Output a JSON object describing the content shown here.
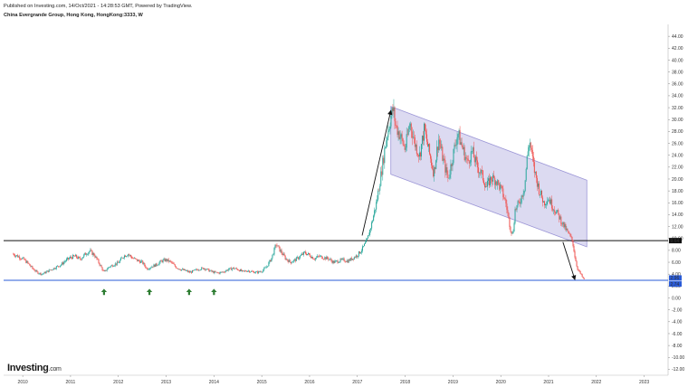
{
  "header": {
    "published": "Published on Investing.com, 14/Oct/2021 - 14:28:53 GMT, Powered by TradingView.",
    "title": "China Evergrande Group, Hong Kong, HongKong:3333, W"
  },
  "logo": {
    "main": "Investing",
    "suffix": ".com"
  },
  "colors": {
    "up": "#26a69a",
    "down": "#ef5350",
    "channel": "#9b95d6",
    "line": "#111111",
    "support": "#2a5bd7",
    "arrow_up": "#2e7d32"
  },
  "chart_data": {
    "type": "candlestick",
    "y_ticks": [
      "44.00",
      "42.00",
      "40.00",
      "38.00",
      "36.00",
      "34.00",
      "32.00",
      "30.00",
      "28.00",
      "26.00",
      "24.00",
      "22.00",
      "20.00",
      "18.00",
      "16.00",
      "14.00",
      "12.00",
      "10.00",
      "8.00",
      "6.00",
      "4.00",
      "2.00",
      "0.00",
      "-2.00",
      "-4.00",
      "-6.00",
      "-8.00",
      "-10.00",
      "-12.00"
    ],
    "x_ticks": [
      "2010",
      "2011",
      "2012",
      "2013",
      "2014",
      "2015",
      "2016",
      "2017",
      "2018",
      "2019",
      "2020",
      "2021",
      "2022",
      "2023"
    ],
    "ylim": [
      -13,
      46
    ],
    "xlim": [
      2009.6,
      2023.5
    ],
    "price_badges": [
      {
        "label": "9.64",
        "value": 9.64,
        "color": "#111111"
      },
      {
        "label": "2.96",
        "value": 2.96,
        "color": "#2a5bd7"
      },
      {
        "label": "2.74",
        "value": 2.74,
        "color": "#2a5bd7"
      }
    ],
    "horizontal_lines": [
      {
        "value": 9.64,
        "color": "#111111"
      },
      {
        "value": 2.96,
        "color": "#2a5bd7"
      }
    ],
    "channel": {
      "upper": [
        [
          2017.7,
          32.2
        ],
        [
          2021.8,
          19.8
        ]
      ],
      "lower": [
        [
          2017.7,
          20.8
        ],
        [
          2021.8,
          8.6
        ]
      ]
    },
    "trend_arrows": [
      {
        "from": [
          2017.1,
          10.5
        ],
        "to": [
          2017.7,
          31.5
        ]
      },
      {
        "from": [
          2021.3,
          9.4
        ],
        "to": [
          2021.55,
          3.1
        ]
      }
    ],
    "support_arrows": [
      2011.7,
      2012.65,
      2013.48,
      2014.0
    ],
    "closes": [
      [
        2009.8,
        7.4
      ],
      [
        2009.9,
        7.0
      ],
      [
        2010.0,
        6.6
      ],
      [
        2010.1,
        5.9
      ],
      [
        2010.2,
        5.0
      ],
      [
        2010.3,
        4.3
      ],
      [
        2010.4,
        4.0
      ],
      [
        2010.5,
        4.4
      ],
      [
        2010.6,
        4.8
      ],
      [
        2010.7,
        5.2
      ],
      [
        2010.8,
        5.6
      ],
      [
        2010.9,
        6.3
      ],
      [
        2011.0,
        6.8
      ],
      [
        2011.1,
        7.0
      ],
      [
        2011.2,
        6.5
      ],
      [
        2011.3,
        7.3
      ],
      [
        2011.4,
        7.9
      ],
      [
        2011.5,
        7.2
      ],
      [
        2011.6,
        5.8
      ],
      [
        2011.7,
        4.3
      ],
      [
        2011.8,
        5.2
      ],
      [
        2011.9,
        5.6
      ],
      [
        2012.0,
        5.9
      ],
      [
        2012.1,
        7.0
      ],
      [
        2012.2,
        7.4
      ],
      [
        2012.3,
        6.7
      ],
      [
        2012.4,
        6.3
      ],
      [
        2012.5,
        6.0
      ],
      [
        2012.6,
        4.9
      ],
      [
        2012.7,
        5.3
      ],
      [
        2012.8,
        5.6
      ],
      [
        2012.9,
        6.2
      ],
      [
        2013.0,
        6.4
      ],
      [
        2013.1,
        6.0
      ],
      [
        2013.2,
        5.2
      ],
      [
        2013.3,
        4.8
      ],
      [
        2013.4,
        4.6
      ],
      [
        2013.5,
        4.3
      ],
      [
        2013.6,
        4.6
      ],
      [
        2013.7,
        4.9
      ],
      [
        2013.8,
        5.0
      ],
      [
        2013.9,
        4.6
      ],
      [
        2014.0,
        4.3
      ],
      [
        2014.1,
        4.2
      ],
      [
        2014.2,
        4.4
      ],
      [
        2014.3,
        4.8
      ],
      [
        2014.4,
        5.0
      ],
      [
        2014.5,
        4.8
      ],
      [
        2014.6,
        4.4
      ],
      [
        2014.7,
        4.6
      ],
      [
        2014.8,
        4.4
      ],
      [
        2014.9,
        4.3
      ],
      [
        2015.0,
        4.5
      ],
      [
        2015.1,
        5.2
      ],
      [
        2015.2,
        6.6
      ],
      [
        2015.3,
        9.0
      ],
      [
        2015.4,
        7.8
      ],
      [
        2015.5,
        6.6
      ],
      [
        2015.6,
        6.0
      ],
      [
        2015.7,
        6.4
      ],
      [
        2015.8,
        7.0
      ],
      [
        2015.9,
        7.6
      ],
      [
        2016.0,
        7.2
      ],
      [
        2016.1,
        6.6
      ],
      [
        2016.2,
        7.0
      ],
      [
        2016.3,
        6.8
      ],
      [
        2016.4,
        6.6
      ],
      [
        2016.5,
        6.0
      ],
      [
        2016.6,
        6.2
      ],
      [
        2016.7,
        6.4
      ],
      [
        2016.8,
        6.2
      ],
      [
        2016.9,
        6.7
      ],
      [
        2017.0,
        7.2
      ],
      [
        2017.1,
        8.2
      ],
      [
        2017.2,
        9.6
      ],
      [
        2017.3,
        12.5
      ],
      [
        2017.4,
        16.0
      ],
      [
        2017.5,
        21.0
      ],
      [
        2017.6,
        26.5
      ],
      [
        2017.7,
        30.5
      ],
      [
        2017.75,
        31.8
      ],
      [
        2017.8,
        29.0
      ],
      [
        2017.9,
        27.2
      ],
      [
        2018.0,
        25.0
      ],
      [
        2018.1,
        29.5
      ],
      [
        2018.2,
        26.0
      ],
      [
        2018.3,
        24.0
      ],
      [
        2018.4,
        28.4
      ],
      [
        2018.5,
        24.5
      ],
      [
        2018.6,
        21.0
      ],
      [
        2018.7,
        26.8
      ],
      [
        2018.8,
        23.0
      ],
      [
        2018.9,
        20.0
      ],
      [
        2019.0,
        24.0
      ],
      [
        2019.1,
        27.8
      ],
      [
        2019.2,
        25.2
      ],
      [
        2019.3,
        22.8
      ],
      [
        2019.4,
        24.6
      ],
      [
        2019.5,
        22.2
      ],
      [
        2019.6,
        20.8
      ],
      [
        2019.7,
        18.6
      ],
      [
        2019.8,
        20.2
      ],
      [
        2019.9,
        19.8
      ],
      [
        2020.0,
        18.4
      ],
      [
        2020.1,
        16.2
      ],
      [
        2020.2,
        11.8
      ],
      [
        2020.25,
        10.5
      ],
      [
        2020.3,
        14.8
      ],
      [
        2020.4,
        16.2
      ],
      [
        2020.5,
        18.8
      ],
      [
        2020.55,
        23.5
      ],
      [
        2020.6,
        26.5
      ],
      [
        2020.65,
        24.0
      ],
      [
        2020.7,
        21.5
      ],
      [
        2020.8,
        18.2
      ],
      [
        2020.9,
        16.0
      ],
      [
        2021.0,
        16.8
      ],
      [
        2021.1,
        15.2
      ],
      [
        2021.2,
        14.0
      ],
      [
        2021.3,
        12.4
      ],
      [
        2021.4,
        11.0
      ],
      [
        2021.5,
        9.6
      ],
      [
        2021.55,
        7.0
      ],
      [
        2021.6,
        5.0
      ],
      [
        2021.7,
        3.6
      ],
      [
        2021.75,
        2.96
      ]
    ]
  }
}
